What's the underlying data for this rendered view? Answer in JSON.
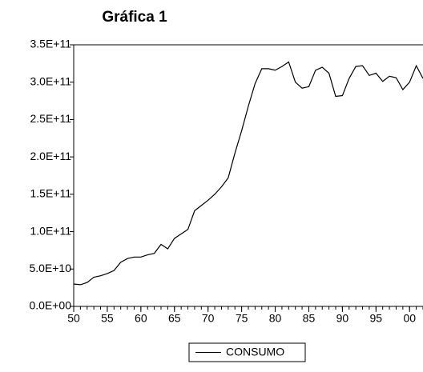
{
  "chart_data": {
    "type": "line",
    "title": "Gráfica 1",
    "x": [
      1950,
      1951,
      1952,
      1953,
      1954,
      1955,
      1956,
      1957,
      1958,
      1959,
      1960,
      1961,
      1962,
      1963,
      1964,
      1965,
      1966,
      1967,
      1968,
      1969,
      1970,
      1971,
      1972,
      1973,
      1974,
      1975,
      1976,
      1977,
      1978,
      1979,
      1980,
      1981,
      1982,
      1983,
      1984,
      1985,
      1986,
      1987,
      1988,
      1989,
      1990,
      1991,
      1992,
      1993,
      1994,
      1995,
      1996,
      1997,
      1998,
      1999,
      2000,
      2001,
      2002
    ],
    "series": [
      {
        "name": "CONSUMO",
        "color": "#000000",
        "values": [
          30000000000,
          29000000000,
          32000000000,
          39000000000,
          41000000000,
          44000000000,
          48000000000,
          59000000000,
          64000000000,
          66000000000,
          66000000000,
          69000000000,
          71000000000,
          83000000000,
          77000000000,
          91000000000,
          97000000000,
          103000000000,
          128000000000,
          135000000000,
          142000000000,
          150000000000,
          160000000000,
          172000000000,
          205000000000,
          235000000000,
          268000000000,
          298000000000,
          318000000000,
          318000000000,
          316000000000,
          321000000000,
          327000000000,
          300000000000,
          292000000000,
          294000000000,
          316000000000,
          320000000000,
          312000000000,
          281000000000,
          282000000000,
          305000000000,
          321000000000,
          322000000000,
          309000000000,
          312000000000,
          301000000000,
          308000000000,
          306000000000,
          290000000000,
          300000000000,
          322000000000,
          305000000000
        ]
      }
    ],
    "xlim": [
      1950,
      2002
    ],
    "xticks": [
      {
        "value": 1950,
        "label": "50"
      },
      {
        "value": 1955,
        "label": "55"
      },
      {
        "value": 1960,
        "label": "60"
      },
      {
        "value": 1965,
        "label": "65"
      },
      {
        "value": 1970,
        "label": "70"
      },
      {
        "value": 1975,
        "label": "75"
      },
      {
        "value": 1980,
        "label": "80"
      },
      {
        "value": 1985,
        "label": "85"
      },
      {
        "value": 1990,
        "label": "90"
      },
      {
        "value": 1995,
        "label": "95"
      },
      {
        "value": 2000,
        "label": "00"
      }
    ],
    "ylim": [
      0,
      350000000000
    ],
    "yticks": [
      {
        "value": 0,
        "label": "0.0E+00"
      },
      {
        "value": 50000000000,
        "label": "5.0E+10"
      },
      {
        "value": 100000000000,
        "label": "1.0E+11"
      },
      {
        "value": 150000000000,
        "label": "1.5E+11"
      },
      {
        "value": 200000000000,
        "label": "2.0E+11"
      },
      {
        "value": 250000000000,
        "label": "2.5E+11"
      },
      {
        "value": 300000000000,
        "label": "3.0E+11"
      },
      {
        "value": 350000000000,
        "label": "3.5E+11"
      }
    ],
    "legend": "bottom"
  }
}
